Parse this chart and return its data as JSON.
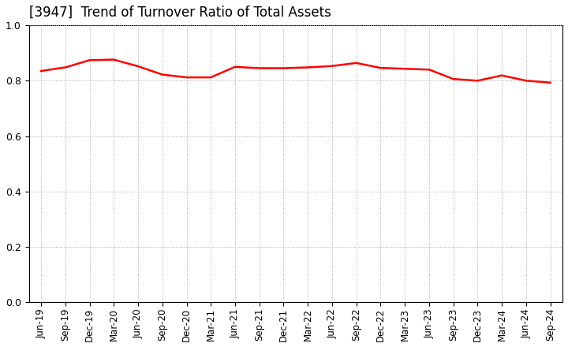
{
  "title": "[3947]  Trend of Turnover Ratio of Total Assets",
  "line_color": "#ff0000",
  "line_width": 1.8,
  "background_color": "#ffffff",
  "grid_color": "#aaaaaa",
  "ylim": [
    0.0,
    1.0
  ],
  "yticks": [
    0.0,
    0.2,
    0.4,
    0.6,
    0.8,
    1.0
  ],
  "x_labels": [
    "Jun-19",
    "Sep-19",
    "Dec-19",
    "Mar-20",
    "Jun-20",
    "Sep-20",
    "Dec-20",
    "Mar-21",
    "Jun-21",
    "Sep-21",
    "Dec-21",
    "Mar-22",
    "Jun-22",
    "Sep-22",
    "Dec-22",
    "Mar-23",
    "Jun-23",
    "Sep-23",
    "Dec-23",
    "Mar-24",
    "Jun-24",
    "Sep-24"
  ],
  "values": [
    0.835,
    0.848,
    0.874,
    0.876,
    0.852,
    0.822,
    0.812,
    0.812,
    0.85,
    0.845,
    0.845,
    0.848,
    0.853,
    0.864,
    0.846,
    0.843,
    0.84,
    0.806,
    0.8,
    0.819,
    0.8,
    0.793
  ]
}
